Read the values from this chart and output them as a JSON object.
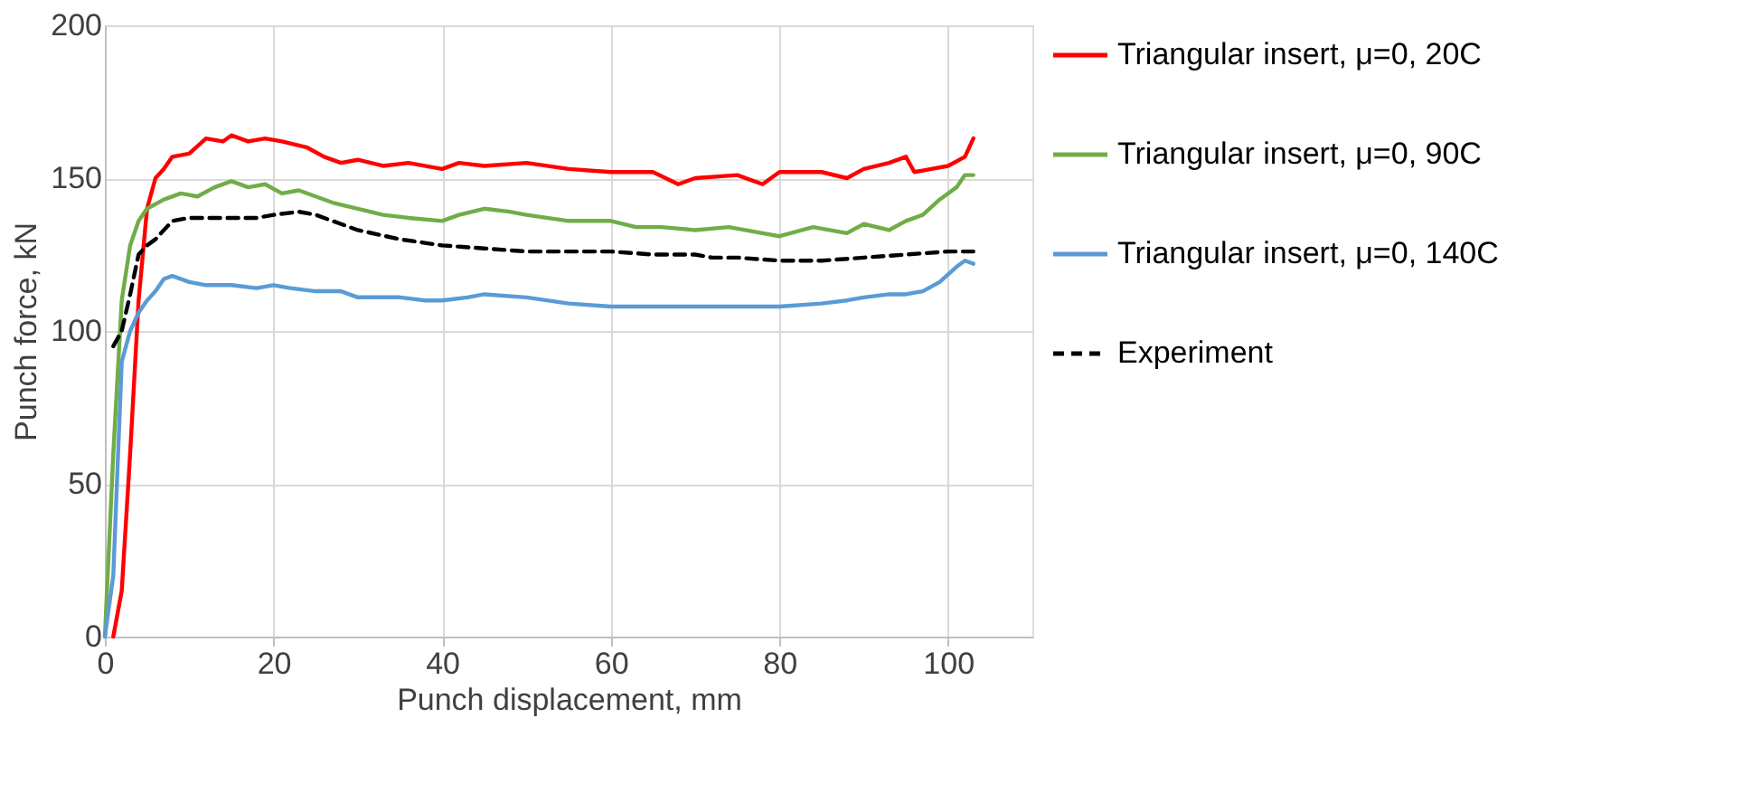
{
  "chart_data": {
    "type": "line",
    "xlabel": "Punch displacement, mm",
    "ylabel": "Punch force, kN",
    "xlim": [
      0,
      110
    ],
    "xticks": [
      0,
      20,
      40,
      60,
      80,
      100
    ],
    "ylim": [
      0,
      200
    ],
    "yticks": [
      0,
      50,
      100,
      150,
      200
    ],
    "grid": true,
    "legend": "right",
    "series": [
      {
        "name": "Triangular insert, μ=0, 20C",
        "color": "#ff0000",
        "line_style": "solid",
        "x": [
          1,
          2,
          3,
          4,
          5,
          6,
          7,
          8,
          10,
          12,
          14,
          15,
          17,
          19,
          21,
          24,
          26,
          28,
          30,
          33,
          36,
          40,
          42,
          45,
          50,
          55,
          60,
          65,
          68,
          70,
          75,
          78,
          80,
          85,
          88,
          90,
          93,
          95,
          96,
          98,
          100,
          102,
          103
        ],
        "values": [
          0,
          15,
          60,
          110,
          140,
          150,
          153,
          157,
          158,
          163,
          162,
          164,
          162,
          163,
          162,
          160,
          157,
          155,
          156,
          154,
          155,
          153,
          155,
          154,
          155,
          153,
          152,
          152,
          148,
          150,
          151,
          148,
          152,
          152,
          150,
          153,
          155,
          157,
          152,
          153,
          154,
          157,
          163
        ]
      },
      {
        "name": "Triangular insert, μ=0, 90C",
        "color": "#70ad47",
        "line_style": "solid",
        "x": [
          0,
          1,
          2,
          3,
          4,
          5,
          7,
          9,
          11,
          13,
          15,
          17,
          19,
          21,
          23,
          25,
          27,
          30,
          33,
          36,
          40,
          42,
          45,
          48,
          50,
          55,
          60,
          63,
          66,
          70,
          74,
          78,
          80,
          84,
          88,
          90,
          93,
          95,
          97,
          99,
          101,
          102,
          103
        ],
        "values": [
          0,
          60,
          110,
          128,
          136,
          140,
          143,
          145,
          144,
          147,
          149,
          147,
          148,
          145,
          146,
          144,
          142,
          140,
          138,
          137,
          136,
          138,
          140,
          139,
          138,
          136,
          136,
          134,
          134,
          133,
          134,
          132,
          131,
          134,
          132,
          135,
          133,
          136,
          138,
          143,
          147,
          151,
          151
        ]
      },
      {
        "name": "Triangular insert, μ=0, 140C",
        "color": "#5b9bd5",
        "line_style": "solid",
        "x": [
          0,
          1,
          2,
          3,
          4,
          5,
          6,
          7,
          8,
          10,
          12,
          15,
          18,
          20,
          22,
          25,
          28,
          30,
          35,
          38,
          40,
          43,
          45,
          50,
          55,
          60,
          65,
          70,
          75,
          80,
          85,
          88,
          90,
          93,
          95,
          97,
          99,
          101,
          102,
          103
        ],
        "values": [
          0,
          20,
          90,
          100,
          106,
          110,
          113,
          117,
          118,
          116,
          115,
          115,
          114,
          115,
          114,
          113,
          113,
          111,
          111,
          110,
          110,
          111,
          112,
          111,
          109,
          108,
          108,
          108,
          108,
          108,
          109,
          110,
          111,
          112,
          112,
          113,
          116,
          121,
          123,
          122
        ]
      },
      {
        "name": "Experiment",
        "color": "#000000",
        "line_style": "dashed",
        "x": [
          1,
          2,
          3,
          4,
          5,
          6,
          8,
          10,
          14,
          18,
          20,
          23,
          25,
          28,
          30,
          35,
          40,
          45,
          50,
          55,
          60,
          65,
          70,
          72,
          75,
          80,
          85,
          90,
          95,
          100,
          103
        ],
        "values": [
          95,
          100,
          112,
          125,
          128,
          130,
          136,
          137,
          137,
          137,
          138,
          139,
          138,
          135,
          133,
          130,
          128,
          127,
          126,
          126,
          126,
          125,
          125,
          124,
          124,
          123,
          123,
          124,
          125,
          126,
          126
        ]
      }
    ]
  }
}
